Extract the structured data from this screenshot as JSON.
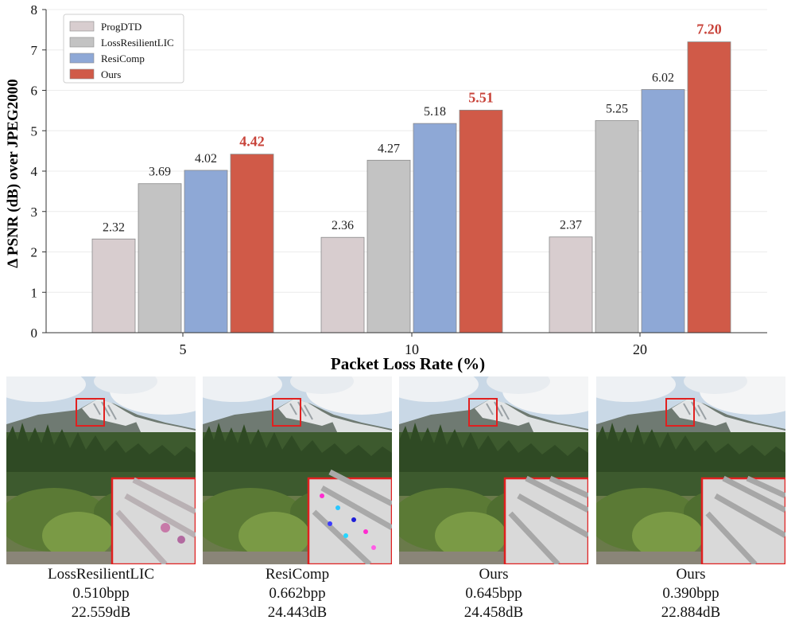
{
  "chart_data": {
    "type": "bar",
    "xlabel": "Packet Loss Rate (%)",
    "ylabel": "Δ PSNR (dB) over JPEG2000",
    "ylim": [
      0,
      8
    ],
    "yticks": [
      0,
      1,
      2,
      3,
      4,
      5,
      6,
      7,
      8
    ],
    "categories": [
      "5",
      "10",
      "20"
    ],
    "series": [
      {
        "name": "ProgDTD",
        "color": "#d8cdcf",
        "values": [
          2.32,
          2.36,
          2.37
        ],
        "labels": [
          "2.32",
          "2.36",
          "2.37"
        ]
      },
      {
        "name": "LossResilientLIC",
        "color": "#c3c3c3",
        "values": [
          3.69,
          4.27,
          5.25
        ],
        "labels": [
          "3.69",
          "4.27",
          "5.25"
        ]
      },
      {
        "name": "ResiComp",
        "color": "#8ea8d6",
        "values": [
          4.02,
          5.18,
          6.02
        ],
        "labels": [
          "4.02",
          "5.18",
          "6.02"
        ]
      },
      {
        "name": "Ours",
        "color": "#d05a48",
        "values": [
          4.42,
          5.51,
          7.2
        ],
        "labels": [
          "4.42",
          "5.51",
          "7.20"
        ]
      }
    ],
    "highlight_color": "#c8433a",
    "grid": true,
    "legend": "top-left"
  },
  "comparisons": [
    {
      "method": "LossResilientLIC",
      "bpp": "0.510bpp",
      "psnr": "22.559dB",
      "artifact": "pink"
    },
    {
      "method": "ResiComp",
      "bpp": "0.662bpp",
      "psnr": "24.443dB",
      "artifact": "color-noise"
    },
    {
      "method": "Ours",
      "bpp": "0.645bpp",
      "psnr": "24.458dB",
      "artifact": "clean"
    },
    {
      "method": "Ours",
      "bpp": "0.390bpp",
      "psnr": "22.884dB",
      "artifact": "clean"
    }
  ]
}
